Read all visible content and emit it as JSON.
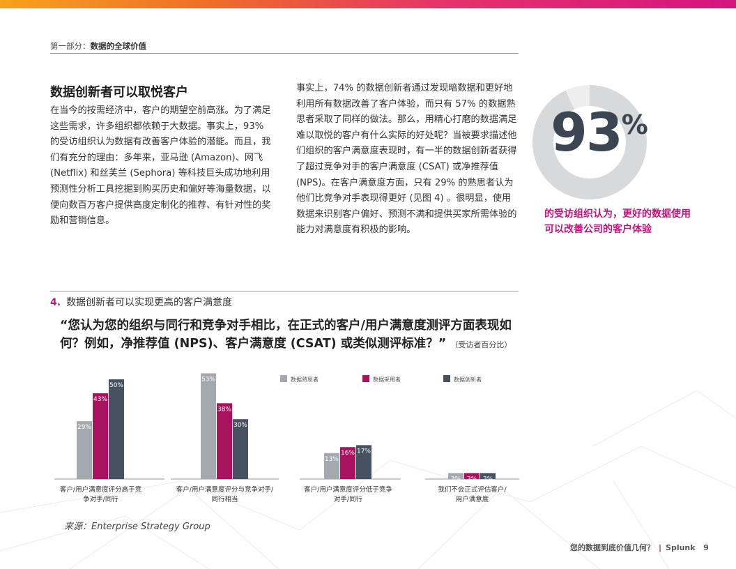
{
  "header": {
    "section": "第一部分：",
    "section_title": "数据的全球价值"
  },
  "article": {
    "heading": "数据创新者可以取悦客户",
    "left_text": "在当今的按需经济中，客户的期望空前高涨。为了满足这些需求，许多组织都依赖于大数据。事实上，93% 的受访组织认为数据有改善客户体验的潜能。而且，我们有充分的理由：多年来，亚马逊 (Amazon)、网飞 (Netflix) 和丝芙兰 (Sephora) 等科技巨头成功地利用预测性分析工具挖掘到购买历史和偏好等海量数据，以便向数百万客户提供高度定制化的推荐、有针对性的奖励和营销信息。",
    "mid_text": "事实上，74% 的数据创新者通过发现暗数据和更好地利用所有数据改善了客户体验，而只有 57% 的数据熟思者采取了同样的做法。那么，用精心打磨的数据满足难以取悦的客户有什么实际的好处呢？当被要求描述他们组织的客户满意度表现时，有一半的数据创新者获得了超过竞争对手的客户满意度 (CSAT) 或净推荐值 (NPS)。在客户满意度方面，只有 29% 的熟思者认为他们比竞争对手表现得更好 (见图 4) 。很明显，使用数据来识别客户偏好、预测不满和提供买家所需体验的能力对满意度有积极的影响。"
  },
  "stat": {
    "value": "93",
    "unit": "%",
    "fraction": 0.93,
    "caption": "的受访组织认为，更好的数据使用可以改善公司的客户体验"
  },
  "figure": {
    "number": "4.",
    "title": "数据创新者可以实现更高的客户满意度",
    "question": "“您认为您的组织与同行和竞争对手相比，在正式的客户/用户满意度测评方面表现如何？例如，净推荐值 (NPS)、客户满意度 (CSAT) 或类似测评标准？”",
    "question_note": "（受访者百分比）",
    "source": "来源：Enterprise Strategy Group"
  },
  "chart_data": {
    "type": "bar",
    "categories": [
      "客户/用户满意度评分高于竞争对手/同行",
      "客户/用户满意度评分与竞争对手/同行相当",
      "客户/用户满意度评分低于竞争对手/同行",
      "我们不会正式评估客户/用户满意度"
    ],
    "category_lines": [
      [
        "客户/用户满意度评分高于竞",
        "争对手/同行"
      ],
      [
        "客户/用户满意度评分与竞争对手/",
        "同行相当"
      ],
      [
        "客户/用户满意度评分低于竞争",
        "对手/同行"
      ],
      [
        "我们不会正式评估客户/",
        "用户满意度"
      ]
    ],
    "series": [
      {
        "name": "数据熟思者",
        "color": "#a3a9ae",
        "values": [
          29,
          53,
          13,
          3
        ]
      },
      {
        "name": "数据采用者",
        "color": "#a8125f",
        "values": [
          43,
          38,
          16,
          3
        ]
      },
      {
        "name": "数据创新者",
        "color": "#465260",
        "values": [
          50,
          30,
          17,
          3
        ]
      }
    ],
    "value_suffix": "%",
    "ylim": [
      0,
      55
    ],
    "legend_position": "top",
    "grid": false
  },
  "footer": {
    "title": "您的数据到底价值几何？",
    "separator": "|",
    "brand": "Splunk",
    "page": "9"
  }
}
